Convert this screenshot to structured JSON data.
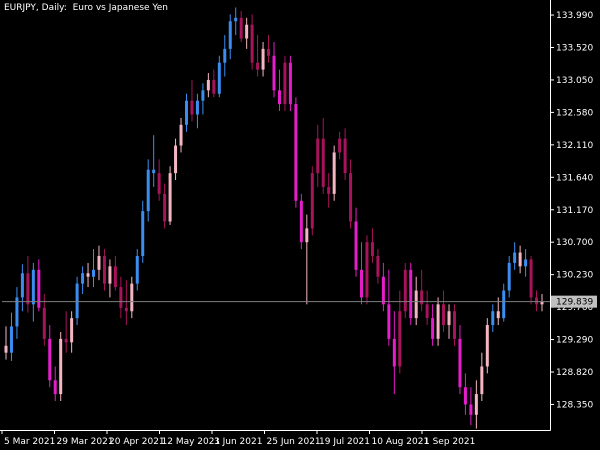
{
  "header": {
    "symbol": "EURJPY",
    "separator": ",",
    "timeframe": "Daily:",
    "description": "Euro vs Japanese Yen"
  },
  "colors": {
    "background": "#000000",
    "bull": "#3b8ef0",
    "bear_strong": "#e51ecb",
    "bear_mid": "#a8145c",
    "pale": "#f4b6c2",
    "axis": "#ffffff",
    "current_price_line": "#7f7f7f",
    "price_tag_bg": "#c0c0c0"
  },
  "chart_data": {
    "type": "candlestick",
    "symbol": "EURJPY",
    "timeframe": "Daily",
    "y_ticks": [
      "133.990",
      "133.520",
      "133.050",
      "132.580",
      "132.110",
      "131.640",
      "131.170",
      "130.700",
      "130.230",
      "129.760",
      "129.290",
      "128.820",
      "128.350"
    ],
    "x_labels": [
      "5 Mar 2021",
      "29 Mar 2021",
      "20 Apr 2021",
      "12 May 2021",
      "3 Jun 2021",
      "25 Jun 2021",
      "19 Jul 2021",
      "10 Aug 2021",
      "1 Sep 2021"
    ],
    "ylim": [
      127.98,
      134.15
    ],
    "current_price": "129.839",
    "candles": [
      {
        "o": 129.2,
        "h": 129.48,
        "l": 129.0,
        "c": 129.1,
        "k": "pale"
      },
      {
        "o": 129.1,
        "h": 129.68,
        "l": 128.98,
        "c": 129.48,
        "k": "bull"
      },
      {
        "o": 129.48,
        "h": 130.05,
        "l": 129.3,
        "c": 129.9,
        "k": "bull"
      },
      {
        "o": 129.9,
        "h": 130.38,
        "l": 129.7,
        "c": 130.25,
        "k": "bull"
      },
      {
        "o": 130.25,
        "h": 130.5,
        "l": 129.68,
        "c": 129.8,
        "k": "bear_mid"
      },
      {
        "o": 129.8,
        "h": 130.4,
        "l": 129.55,
        "c": 130.3,
        "k": "bull"
      },
      {
        "o": 130.3,
        "h": 130.45,
        "l": 129.7,
        "c": 129.75,
        "k": "bear_strong"
      },
      {
        "o": 129.75,
        "h": 129.95,
        "l": 129.2,
        "c": 129.3,
        "k": "bear_mid"
      },
      {
        "o": 129.3,
        "h": 129.5,
        "l": 128.6,
        "c": 128.7,
        "k": "bear_strong"
      },
      {
        "o": 128.7,
        "h": 128.9,
        "l": 128.4,
        "c": 128.5,
        "k": "bear_strong"
      },
      {
        "o": 128.5,
        "h": 129.4,
        "l": 128.4,
        "c": 129.3,
        "k": "pale"
      },
      {
        "o": 129.3,
        "h": 129.7,
        "l": 129.1,
        "c": 129.25,
        "k": "bear_mid"
      },
      {
        "o": 129.25,
        "h": 129.7,
        "l": 129.1,
        "c": 129.6,
        "k": "pale"
      },
      {
        "o": 129.6,
        "h": 130.2,
        "l": 129.5,
        "c": 130.1,
        "k": "bull"
      },
      {
        "o": 130.1,
        "h": 130.35,
        "l": 129.95,
        "c": 130.25,
        "k": "bull"
      },
      {
        "o": 130.25,
        "h": 130.4,
        "l": 130.05,
        "c": 130.2,
        "k": "pale"
      },
      {
        "o": 130.2,
        "h": 130.6,
        "l": 130.05,
        "c": 130.3,
        "k": "bull"
      },
      {
        "o": 130.3,
        "h": 130.65,
        "l": 130.15,
        "c": 130.5,
        "k": "pale"
      },
      {
        "o": 130.5,
        "h": 130.6,
        "l": 130.0,
        "c": 130.1,
        "k": "bear_mid"
      },
      {
        "o": 130.1,
        "h": 130.45,
        "l": 129.9,
        "c": 130.35,
        "k": "pale"
      },
      {
        "o": 130.35,
        "h": 130.5,
        "l": 130.0,
        "c": 130.05,
        "k": "bear_mid"
      },
      {
        "o": 130.05,
        "h": 130.2,
        "l": 129.6,
        "c": 129.75,
        "k": "bear_mid"
      },
      {
        "o": 129.75,
        "h": 130.15,
        "l": 129.5,
        "c": 129.7,
        "k": "bear_mid"
      },
      {
        "o": 129.7,
        "h": 130.2,
        "l": 129.6,
        "c": 130.1,
        "k": "pale"
      },
      {
        "o": 130.1,
        "h": 130.6,
        "l": 130.0,
        "c": 130.5,
        "k": "bull"
      },
      {
        "o": 130.5,
        "h": 131.3,
        "l": 130.4,
        "c": 131.15,
        "k": "bull"
      },
      {
        "o": 131.15,
        "h": 131.9,
        "l": 131.0,
        "c": 131.75,
        "k": "bull"
      },
      {
        "o": 131.75,
        "h": 132.25,
        "l": 131.5,
        "c": 131.7,
        "k": "bull"
      },
      {
        "o": 131.7,
        "h": 131.9,
        "l": 131.3,
        "c": 131.4,
        "k": "bear_mid"
      },
      {
        "o": 131.4,
        "h": 131.55,
        "l": 130.9,
        "c": 131.0,
        "k": "bear_mid"
      },
      {
        "o": 131.0,
        "h": 131.8,
        "l": 130.95,
        "c": 131.7,
        "k": "pale"
      },
      {
        "o": 131.7,
        "h": 132.2,
        "l": 131.6,
        "c": 132.1,
        "k": "pale"
      },
      {
        "o": 132.1,
        "h": 132.5,
        "l": 132.0,
        "c": 132.4,
        "k": "pale"
      },
      {
        "o": 132.4,
        "h": 132.85,
        "l": 132.3,
        "c": 132.75,
        "k": "bull"
      },
      {
        "o": 132.75,
        "h": 133.05,
        "l": 132.45,
        "c": 132.55,
        "k": "bear_mid"
      },
      {
        "o": 132.55,
        "h": 132.85,
        "l": 132.35,
        "c": 132.75,
        "k": "bull"
      },
      {
        "o": 132.75,
        "h": 133.0,
        "l": 132.55,
        "c": 132.9,
        "k": "bull"
      },
      {
        "o": 132.9,
        "h": 133.15,
        "l": 132.8,
        "c": 133.05,
        "k": "pale"
      },
      {
        "o": 133.05,
        "h": 133.2,
        "l": 132.8,
        "c": 132.85,
        "k": "bear_mid"
      },
      {
        "o": 132.85,
        "h": 133.4,
        "l": 132.8,
        "c": 133.3,
        "k": "bull"
      },
      {
        "o": 133.3,
        "h": 133.7,
        "l": 133.1,
        "c": 133.5,
        "k": "bull"
      },
      {
        "o": 133.5,
        "h": 134.0,
        "l": 133.35,
        "c": 133.9,
        "k": "bull"
      },
      {
        "o": 133.9,
        "h": 134.1,
        "l": 133.7,
        "c": 133.95,
        "k": "bull"
      },
      {
        "o": 133.95,
        "h": 134.05,
        "l": 133.6,
        "c": 133.65,
        "k": "bear_mid"
      },
      {
        "o": 133.65,
        "h": 133.95,
        "l": 133.5,
        "c": 133.85,
        "k": "pale"
      },
      {
        "o": 133.85,
        "h": 134.0,
        "l": 133.2,
        "c": 133.3,
        "k": "bear_mid"
      },
      {
        "o": 133.3,
        "h": 133.7,
        "l": 133.1,
        "c": 133.2,
        "k": "bear_mid"
      },
      {
        "o": 133.2,
        "h": 133.6,
        "l": 133.1,
        "c": 133.5,
        "k": "pale"
      },
      {
        "o": 133.5,
        "h": 133.7,
        "l": 133.3,
        "c": 133.4,
        "k": "bear_mid"
      },
      {
        "o": 133.4,
        "h": 133.6,
        "l": 132.8,
        "c": 132.9,
        "k": "bear_strong"
      },
      {
        "o": 132.9,
        "h": 133.2,
        "l": 132.6,
        "c": 132.7,
        "k": "bear_strong"
      },
      {
        "o": 132.7,
        "h": 133.4,
        "l": 132.6,
        "c": 133.3,
        "k": "bear_mid"
      },
      {
        "o": 133.3,
        "h": 133.4,
        "l": 132.6,
        "c": 132.7,
        "k": "bear_strong"
      },
      {
        "o": 132.7,
        "h": 132.8,
        "l": 131.2,
        "c": 131.3,
        "k": "bear_strong"
      },
      {
        "o": 131.3,
        "h": 131.4,
        "l": 130.6,
        "c": 130.7,
        "k": "bear_strong"
      },
      {
        "o": 130.7,
        "h": 131.1,
        "l": 129.8,
        "c": 130.9,
        "k": "pale"
      },
      {
        "o": 130.9,
        "h": 131.8,
        "l": 130.8,
        "c": 131.7,
        "k": "bear_mid"
      },
      {
        "o": 131.7,
        "h": 132.4,
        "l": 131.5,
        "c": 132.2,
        "k": "bear_mid"
      },
      {
        "o": 132.2,
        "h": 132.5,
        "l": 131.4,
        "c": 131.5,
        "k": "bear_mid"
      },
      {
        "o": 131.5,
        "h": 131.7,
        "l": 131.2,
        "c": 131.4,
        "k": "bear_mid"
      },
      {
        "o": 131.4,
        "h": 132.1,
        "l": 131.3,
        "c": 132.0,
        "k": "pale"
      },
      {
        "o": 132.0,
        "h": 132.3,
        "l": 131.9,
        "c": 132.2,
        "k": "bear_mid"
      },
      {
        "o": 132.2,
        "h": 132.35,
        "l": 131.6,
        "c": 131.7,
        "k": "bear_mid"
      },
      {
        "o": 131.7,
        "h": 131.9,
        "l": 130.9,
        "c": 131.0,
        "k": "bear_mid"
      },
      {
        "o": 131.0,
        "h": 131.2,
        "l": 130.2,
        "c": 130.3,
        "k": "bear_strong"
      },
      {
        "o": 130.3,
        "h": 130.7,
        "l": 129.8,
        "c": 129.9,
        "k": "bear_strong"
      },
      {
        "o": 129.9,
        "h": 130.8,
        "l": 129.8,
        "c": 130.7,
        "k": "bear_mid"
      },
      {
        "o": 130.7,
        "h": 130.9,
        "l": 130.4,
        "c": 130.5,
        "k": "bear_mid"
      },
      {
        "o": 130.5,
        "h": 130.6,
        "l": 130.1,
        "c": 130.2,
        "k": "bear_mid"
      },
      {
        "o": 130.2,
        "h": 130.4,
        "l": 129.7,
        "c": 129.8,
        "k": "bear_strong"
      },
      {
        "o": 129.8,
        "h": 130.3,
        "l": 129.2,
        "c": 129.3,
        "k": "bear_strong"
      },
      {
        "o": 129.3,
        "h": 129.7,
        "l": 128.5,
        "c": 128.9,
        "k": "bear_strong"
      },
      {
        "o": 128.9,
        "h": 130.0,
        "l": 128.8,
        "c": 129.7,
        "k": "bear_mid"
      },
      {
        "o": 129.7,
        "h": 130.4,
        "l": 129.6,
        "c": 130.3,
        "k": "bear_mid"
      },
      {
        "o": 130.3,
        "h": 130.4,
        "l": 129.5,
        "c": 129.6,
        "k": "bear_strong"
      },
      {
        "o": 129.6,
        "h": 130.2,
        "l": 129.5,
        "c": 130.0,
        "k": "pale"
      },
      {
        "o": 130.0,
        "h": 130.3,
        "l": 129.7,
        "c": 129.8,
        "k": "bear_mid"
      },
      {
        "o": 129.8,
        "h": 130.0,
        "l": 129.5,
        "c": 129.6,
        "k": "bear_mid"
      },
      {
        "o": 129.6,
        "h": 129.8,
        "l": 129.2,
        "c": 129.3,
        "k": "bear_strong"
      },
      {
        "o": 129.3,
        "h": 129.9,
        "l": 129.2,
        "c": 129.8,
        "k": "pale"
      },
      {
        "o": 129.8,
        "h": 130.0,
        "l": 129.4,
        "c": 129.5,
        "k": "bear_mid"
      },
      {
        "o": 129.5,
        "h": 129.8,
        "l": 129.3,
        "c": 129.7,
        "k": "pale"
      },
      {
        "o": 129.7,
        "h": 129.8,
        "l": 129.2,
        "c": 129.3,
        "k": "bear_mid"
      },
      {
        "o": 129.3,
        "h": 129.5,
        "l": 128.5,
        "c": 128.6,
        "k": "bear_strong"
      },
      {
        "o": 128.6,
        "h": 128.8,
        "l": 128.2,
        "c": 128.35,
        "k": "bear_strong"
      },
      {
        "o": 128.35,
        "h": 128.6,
        "l": 128.05,
        "c": 128.2,
        "k": "bear_strong"
      },
      {
        "o": 128.2,
        "h": 128.7,
        "l": 128.0,
        "c": 128.5,
        "k": "pale"
      },
      {
        "o": 128.5,
        "h": 129.1,
        "l": 128.4,
        "c": 128.9,
        "k": "pale"
      },
      {
        "o": 128.9,
        "h": 129.6,
        "l": 128.8,
        "c": 129.5,
        "k": "pale"
      },
      {
        "o": 129.5,
        "h": 129.8,
        "l": 129.4,
        "c": 129.7,
        "k": "bull"
      },
      {
        "o": 129.7,
        "h": 129.9,
        "l": 129.5,
        "c": 129.6,
        "k": "pale"
      },
      {
        "o": 129.6,
        "h": 130.1,
        "l": 129.55,
        "c": 130.0,
        "k": "bull"
      },
      {
        "o": 130.0,
        "h": 130.5,
        "l": 129.9,
        "c": 130.4,
        "k": "bull"
      },
      {
        "o": 130.4,
        "h": 130.7,
        "l": 130.3,
        "c": 130.55,
        "k": "bull"
      },
      {
        "o": 130.55,
        "h": 130.65,
        "l": 130.25,
        "c": 130.35,
        "k": "pale"
      },
      {
        "o": 130.35,
        "h": 130.6,
        "l": 130.2,
        "c": 130.45,
        "k": "bull"
      },
      {
        "o": 130.45,
        "h": 130.5,
        "l": 129.8,
        "c": 129.9,
        "k": "bear_mid"
      },
      {
        "o": 129.9,
        "h": 130.0,
        "l": 129.7,
        "c": 129.8,
        "k": "bear_mid"
      },
      {
        "o": 129.8,
        "h": 129.95,
        "l": 129.7,
        "c": 129.84,
        "k": "pale"
      }
    ]
  }
}
